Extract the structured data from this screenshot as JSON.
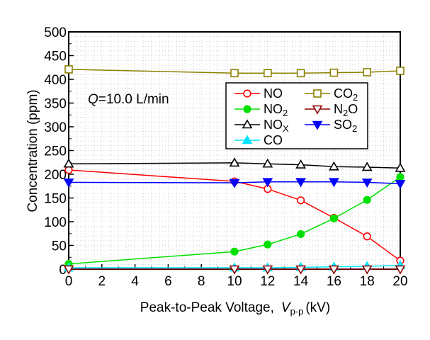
{
  "chart_data": {
    "type": "line",
    "xlabel": "Peak-to-Peak Voltage,",
    "xlabel_symbol": "V",
    "xlabel_sub": "p-p",
    "xlabel_unit": "(kV)",
    "ylabel": "Concentration  (ppm)",
    "xlim": [
      0,
      20
    ],
    "ylim": [
      0,
      500
    ],
    "x_ticks": [
      "0",
      "2",
      "4",
      "6",
      "8",
      "10",
      "12",
      "14",
      "16",
      "18",
      "20"
    ],
    "y_ticks": [
      "0",
      "50",
      "100",
      "150",
      "200",
      "250",
      "300",
      "350",
      "400",
      "450",
      "500"
    ],
    "grid": true,
    "annotation": {
      "symbol": "Q",
      "text": "=10.0 L/min"
    },
    "legend_position": "right",
    "x": [
      0,
      10,
      12,
      14,
      16,
      18,
      20
    ],
    "series": [
      {
        "name": "NO",
        "label_base": "NO",
        "label_sub": "",
        "color": "#ff0000",
        "marker": "circle",
        "filled": false,
        "values": [
          209,
          185,
          169,
          145,
          108,
          69,
          18
        ]
      },
      {
        "name": "NO2",
        "label_base": "NO",
        "label_sub": "2",
        "color": "#00e000",
        "marker": "circle",
        "filled": true,
        "values": [
          11,
          37,
          52,
          74,
          107,
          146,
          194
        ]
      },
      {
        "name": "NOx",
        "label_base": "NO",
        "label_sub": "X",
        "color": "#000000",
        "marker": "triangle-up",
        "filled": false,
        "values": [
          222,
          224,
          222,
          220,
          216,
          215,
          213
        ]
      },
      {
        "name": "CO",
        "label_base": "CO",
        "label_sub": "",
        "color": "#00e5ff",
        "marker": "triangle-up",
        "filled": true,
        "values": [
          3,
          3,
          3,
          4,
          5,
          6,
          8
        ]
      },
      {
        "name": "CO2",
        "label_base": "CO",
        "label_sub": "2",
        "color": "#8b8000",
        "marker": "square",
        "filled": false,
        "values": [
          421,
          413,
          413,
          413,
          414,
          415,
          418
        ]
      },
      {
        "name": "N2O",
        "label_base": "N",
        "label_sub": "2",
        "label_tail": "O",
        "color": "#8b0000",
        "marker": "triangle-down",
        "filled": false,
        "values": [
          0,
          0,
          0,
          0,
          0,
          0,
          0
        ]
      },
      {
        "name": "SO2",
        "label_base": "SO",
        "label_sub": "2",
        "color": "#0000ff",
        "marker": "triangle-down",
        "filled": true,
        "values": [
          183,
          182,
          184,
          184,
          184,
          183,
          180
        ]
      }
    ]
  }
}
